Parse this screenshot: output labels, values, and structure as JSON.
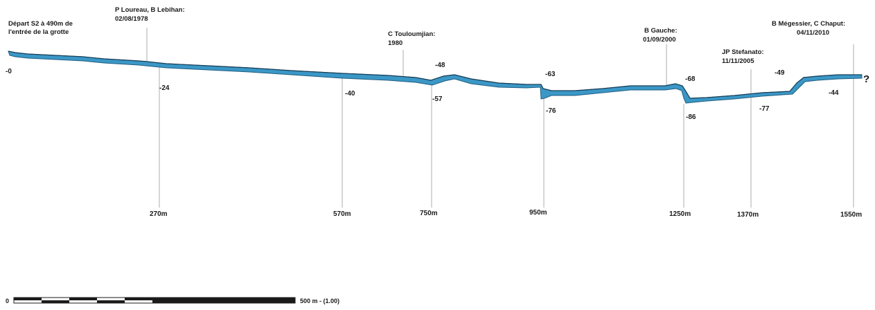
{
  "start_label": {
    "line1": "Départ S2 à 490m de",
    "line2": "l'entrée de la grotte"
  },
  "annotations": [
    {
      "line1": "P Loureau, B Lebihan:",
      "line2": "02/08/1978"
    },
    {
      "line1": "C Touloumjian:",
      "line2": "1980"
    },
    {
      "line1": "B Gauche:",
      "line2": "01/09/2000"
    },
    {
      "line1": "JP Stefanato:",
      "line2": "11/11/2005"
    },
    {
      "line1": "B Mégessier, C Chaput:",
      "line2": "04/11/2010"
    }
  ],
  "depths": [
    "-0",
    "-24",
    "-40",
    "-48",
    "-57",
    "-63",
    "-76",
    "-68",
    "-86",
    "-77",
    "-49",
    "-44"
  ],
  "distances": [
    "270m",
    "570m",
    "750m",
    "950m",
    "1250m",
    "1370m",
    "1550m"
  ],
  "end_mark": "?",
  "scale": {
    "zero": "0",
    "label": "500 m - (1.00)"
  },
  "colors": {
    "water": "#3b97c6",
    "outline": "#1f5e82",
    "text": "#1a1a1a",
    "guide": "#9a9a9a"
  }
}
